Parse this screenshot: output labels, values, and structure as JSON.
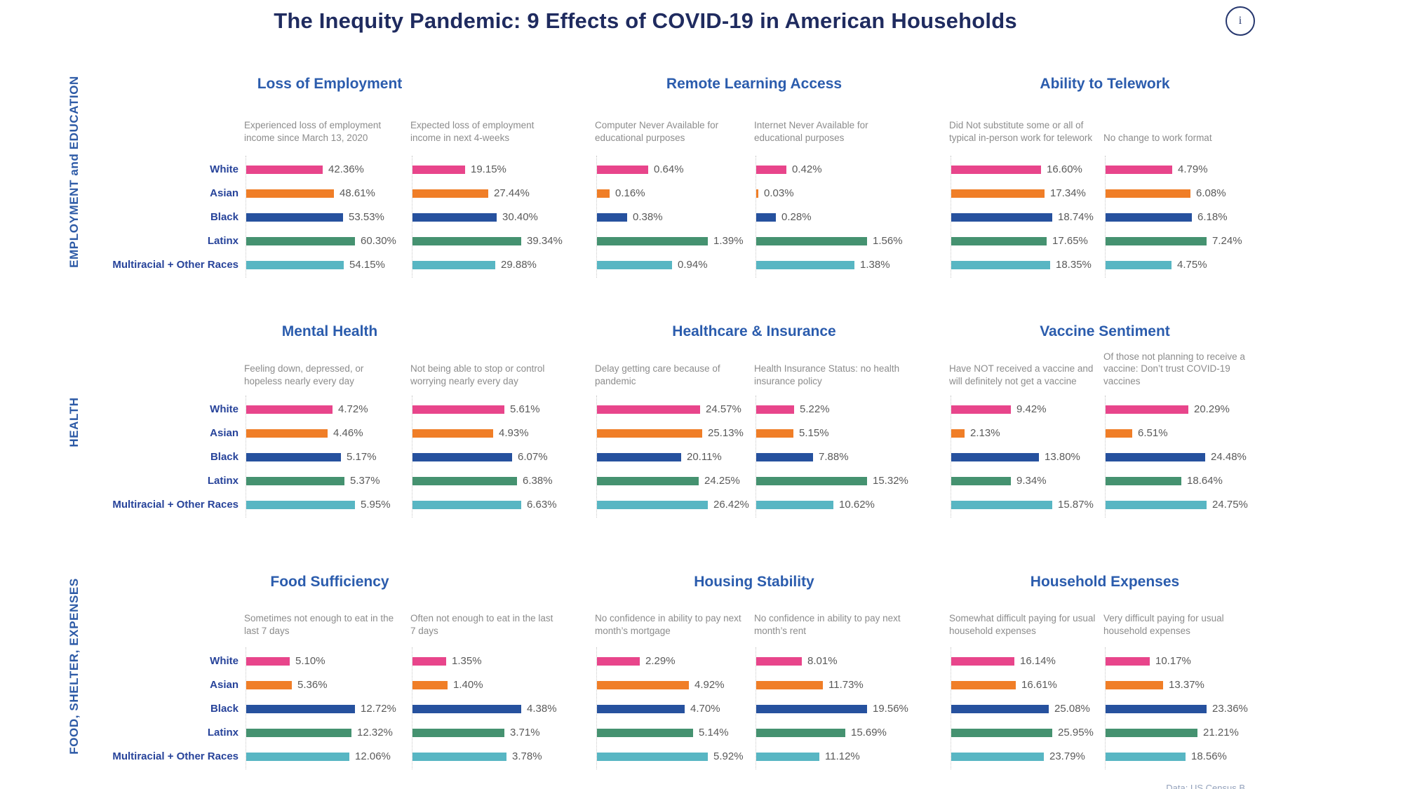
{
  "title": "The Inequity Pandemic: 9 Effects of COVID-19 in American Households",
  "info_icon": "i",
  "credit": "Data: US Census B",
  "sections": [
    "EMPLOYMENT and EDUCATION",
    "HEALTH",
    "FOOD, SHELTER, EXPENSES"
  ],
  "categories": [
    "White",
    "Asian",
    "Black",
    "Latinx",
    "Multiracial + Other Races"
  ],
  "colors": {
    "bar_white": "#e8458b",
    "bar_asian": "#f07e27",
    "bar_black": "#26519e",
    "bar_latinx": "#459270",
    "bar_multiracial": "#58b6c3",
    "title_navy": "#1f2b5f",
    "chart_title_blue": "#2b5cad",
    "category_label_blue": "#27439a",
    "subtitle_gray": "#8c8c8c",
    "value_gray": "#5a5a5a"
  },
  "chart_data": [
    {
      "type": "bar",
      "title": "Loss of Employment",
      "section": "EMPLOYMENT and EDUCATION",
      "categories": [
        "White",
        "Asian",
        "Black",
        "Latinx",
        "Multiracial + Other Races"
      ],
      "value_format": "percent",
      "subcharts": [
        {
          "subtitle": "Experienced loss of employment income since March 13, 2020",
          "values": [
            42.36,
            48.61,
            53.53,
            60.3,
            54.15
          ]
        },
        {
          "subtitle": "Expected loss of employment income in next 4-weeks",
          "values": [
            19.15,
            27.44,
            30.4,
            39.34,
            29.88
          ]
        }
      ]
    },
    {
      "type": "bar",
      "title": "Remote Learning Access",
      "section": "EMPLOYMENT and EDUCATION",
      "categories": [
        "White",
        "Asian",
        "Black",
        "Latinx",
        "Multiracial + Other Races"
      ],
      "value_format": "percent",
      "subcharts": [
        {
          "subtitle": "Computer Never Available for educational purposes",
          "values": [
            0.64,
            0.16,
            0.38,
            1.39,
            0.94
          ]
        },
        {
          "subtitle": "Internet Never Available for educational purposes",
          "values": [
            0.42,
            0.03,
            0.28,
            1.56,
            1.38
          ]
        }
      ]
    },
    {
      "type": "bar",
      "title": "Ability to Telework",
      "section": "EMPLOYMENT and EDUCATION",
      "categories": [
        "White",
        "Asian",
        "Black",
        "Latinx",
        "Multiracial + Other Races"
      ],
      "value_format": "percent",
      "subcharts": [
        {
          "subtitle": "Did Not substitute some or all of typical in-person work for telework",
          "values": [
            16.6,
            17.34,
            18.74,
            17.65,
            18.35
          ]
        },
        {
          "subtitle": "No change to work format",
          "values": [
            4.79,
            6.08,
            6.18,
            7.24,
            4.75
          ]
        }
      ]
    },
    {
      "type": "bar",
      "title": "Mental Health",
      "section": "HEALTH",
      "categories": [
        "White",
        "Asian",
        "Black",
        "Latinx",
        "Multiracial + Other Races"
      ],
      "value_format": "percent",
      "subcharts": [
        {
          "subtitle": "Feeling down, depressed, or hopeless nearly every day",
          "values": [
            4.72,
            4.46,
            5.17,
            5.37,
            5.95
          ]
        },
        {
          "subtitle": "Not being able to stop or control worrying nearly every day",
          "values": [
            5.61,
            4.93,
            6.07,
            6.38,
            6.63
          ]
        }
      ]
    },
    {
      "type": "bar",
      "title": "Healthcare & Insurance",
      "section": "HEALTH",
      "categories": [
        "White",
        "Asian",
        "Black",
        "Latinx",
        "Multiracial + Other Races"
      ],
      "value_format": "percent",
      "subcharts": [
        {
          "subtitle": "Delay getting care because of pandemic",
          "values": [
            24.57,
            25.13,
            20.11,
            24.25,
            26.42
          ]
        },
        {
          "subtitle": "Health Insurance Status: no health insurance policy",
          "values": [
            5.22,
            5.15,
            7.88,
            15.32,
            10.62
          ]
        }
      ]
    },
    {
      "type": "bar",
      "title": "Vaccine Sentiment",
      "section": "HEALTH",
      "categories": [
        "White",
        "Asian",
        "Black",
        "Latinx",
        "Multiracial + Other Races"
      ],
      "value_format": "percent",
      "subcharts": [
        {
          "subtitle": "Have NOT received a vaccine and will definitely not get a vaccine",
          "values": [
            9.42,
            2.13,
            13.8,
            9.34,
            15.87
          ]
        },
        {
          "subtitle": "Of those not planning to receive a vaccine: Don’t trust COVID-19 vaccines",
          "values": [
            20.29,
            6.51,
            24.48,
            18.64,
            24.75
          ]
        }
      ]
    },
    {
      "type": "bar",
      "title": "Food Sufficiency",
      "section": "FOOD, SHELTER, EXPENSES",
      "categories": [
        "White",
        "Asian",
        "Black",
        "Latinx",
        "Multiracial + Other Races"
      ],
      "value_format": "percent",
      "subcharts": [
        {
          "subtitle": "Sometimes not enough to eat in the last 7 days",
          "values": [
            5.1,
            5.36,
            12.72,
            12.32,
            12.06
          ]
        },
        {
          "subtitle": "Often not enough to eat in the last 7 days",
          "values": [
            1.35,
            1.4,
            4.38,
            3.71,
            3.78
          ]
        }
      ]
    },
    {
      "type": "bar",
      "title": "Housing Stability",
      "section": "FOOD, SHELTER, EXPENSES",
      "categories": [
        "White",
        "Asian",
        "Black",
        "Latinx",
        "Multiracial + Other Races"
      ],
      "value_format": "percent",
      "subcharts": [
        {
          "subtitle": "No confidence in ability to pay next month’s mortgage",
          "values": [
            2.29,
            4.92,
            4.7,
            5.14,
            5.92
          ]
        },
        {
          "subtitle": "No confidence in ability to pay next month’s rent",
          "values": [
            8.01,
            11.73,
            19.56,
            15.69,
            11.12
          ]
        }
      ]
    },
    {
      "type": "bar",
      "title": "Household Expenses",
      "section": "FOOD, SHELTER, EXPENSES",
      "categories": [
        "White",
        "Asian",
        "Black",
        "Latinx",
        "Multiracial + Other Races"
      ],
      "value_format": "percent",
      "subcharts": [
        {
          "subtitle": "Somewhat difficult paying for usual household expenses",
          "values": [
            16.14,
            16.61,
            25.08,
            25.95,
            23.79
          ]
        },
        {
          "subtitle": "Very difficult paying for usual household expenses",
          "values": [
            10.17,
            13.37,
            23.36,
            21.21,
            18.56
          ]
        }
      ]
    }
  ]
}
